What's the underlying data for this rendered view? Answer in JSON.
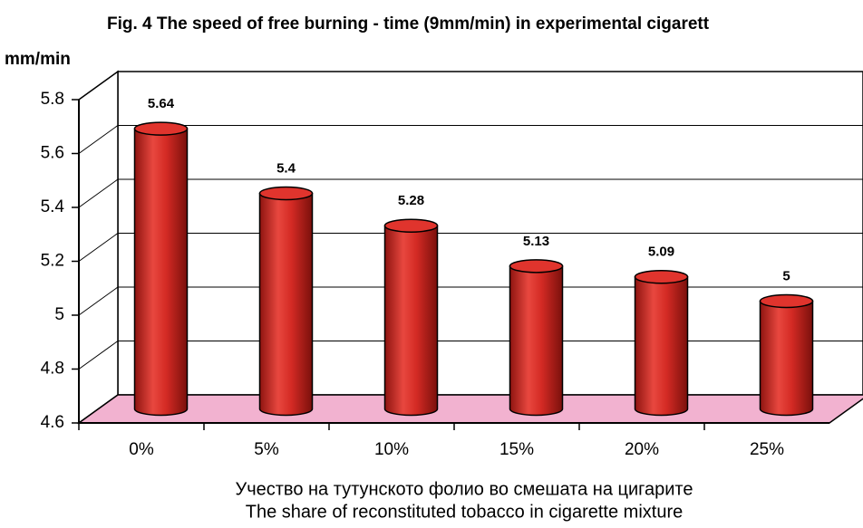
{
  "chart_data": {
    "type": "bar",
    "title": "Fig. 4  The speed of free burning - time (9mm/min) in experimental cigarett",
    "y_label": "mm/min",
    "x_label": [
      "Учество на тутунското фолио во смешата на цигарите",
      "The share of reconstituted tobacco in cigarette mixture"
    ],
    "categories": [
      "0%",
      "5%",
      "10%",
      "15%",
      "20%",
      "25%"
    ],
    "values": [
      5.64,
      5.4,
      5.28,
      5.13,
      5.09,
      5
    ],
    "color": "#d42a24",
    "floor_color": "#f2b2d0",
    "ylim": [
      4.6,
      5.8
    ],
    "yticks": [
      4.6,
      4.8,
      5,
      5.2,
      5.4,
      5.6,
      5.8
    ],
    "grid": true
  }
}
